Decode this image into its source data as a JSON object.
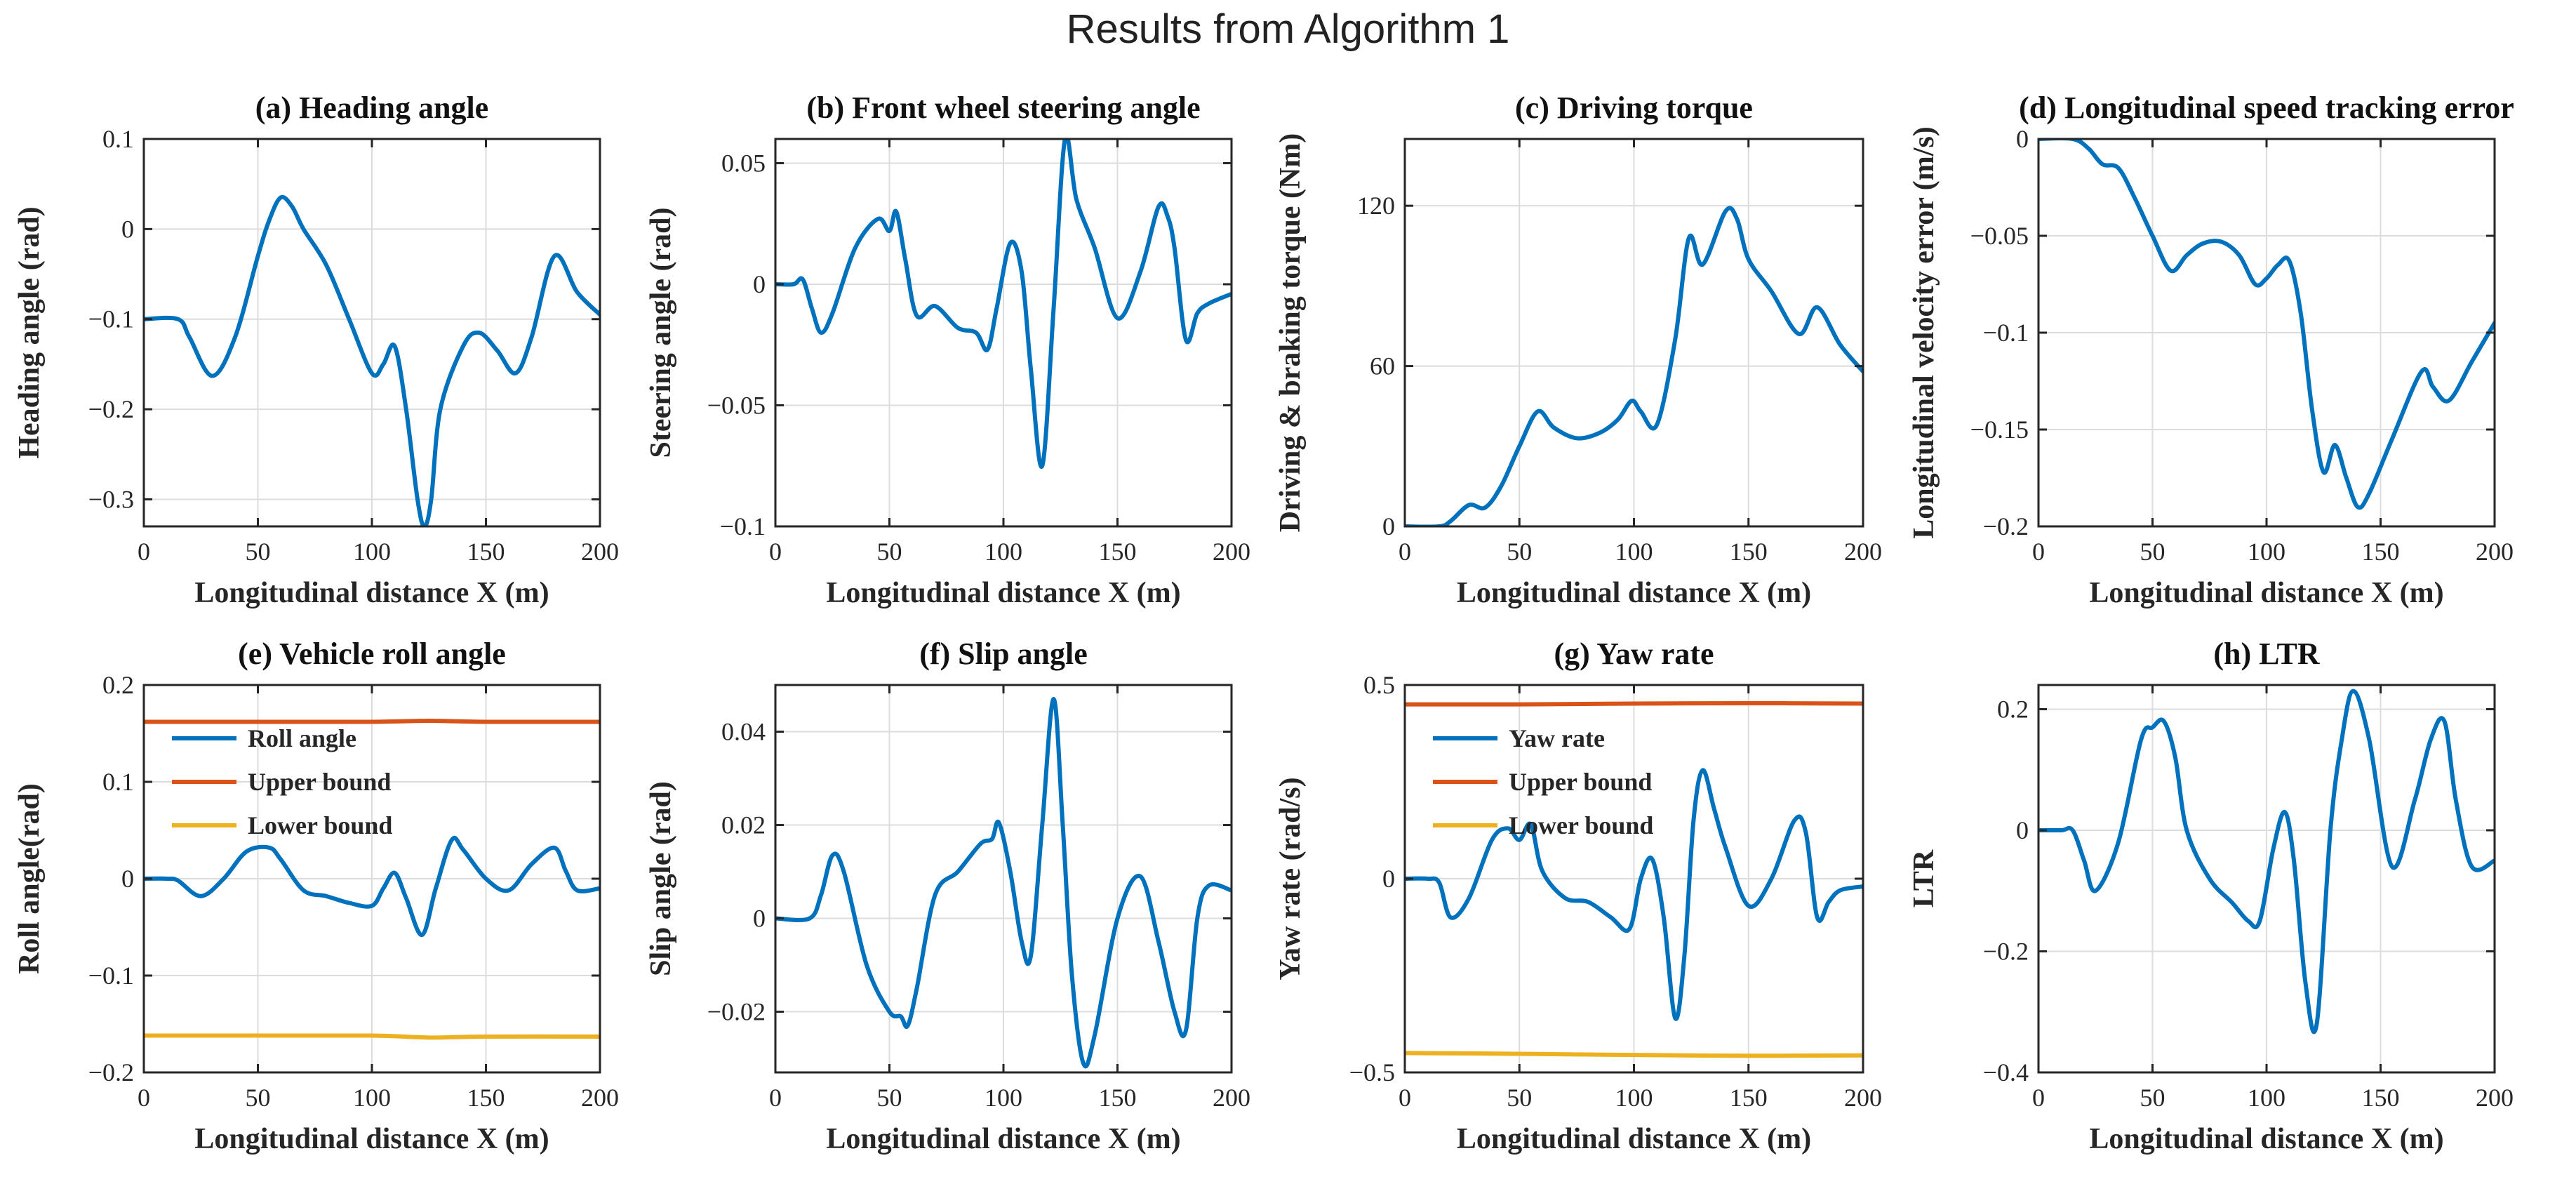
{
  "figure": {
    "title": "Results from Algorithm 1"
  },
  "colors": {
    "blue": "#0072BD",
    "orange": "#D95319",
    "yellow": "#EDB120",
    "grid": "#dcdcdc",
    "axis": "#262626"
  },
  "chart_data": [
    {
      "type": "line",
      "title": "(a) Heading angle",
      "xlabel": "Longitudinal distance X (m)",
      "ylabel": "Heading angle (rad)",
      "xlim": [
        0,
        200
      ],
      "ylim": [
        -0.33,
        0.1
      ],
      "xticks": [
        0,
        50,
        100,
        150,
        200
      ],
      "xticklabels": [
        "0",
        "50",
        "100",
        "150",
        "200"
      ],
      "yticks": [
        -0.3,
        -0.2,
        -0.1,
        0,
        0.1
      ],
      "yticklabels": [
        "−0.3",
        "−0.2",
        "−0.1",
        "0",
        "0.1"
      ],
      "grid": true,
      "legend": null,
      "series": [
        {
          "name": "Heading angle",
          "color": "#0072BD",
          "x": [
            0,
            15,
            20,
            30,
            40,
            50,
            55,
            60,
            65,
            70,
            80,
            90,
            100,
            105,
            110,
            115,
            120,
            123,
            126,
            130,
            140,
            147,
            155,
            163,
            170,
            180,
            190,
            200
          ],
          "y": [
            -0.1,
            -0.1,
            -0.12,
            -0.163,
            -0.12,
            -0.03,
            0.01,
            0.035,
            0.025,
            0.0,
            -0.04,
            -0.1,
            -0.16,
            -0.15,
            -0.13,
            -0.2,
            -0.3,
            -0.33,
            -0.3,
            -0.2,
            -0.13,
            -0.115,
            -0.135,
            -0.16,
            -0.12,
            -0.03,
            -0.07,
            -0.095
          ]
        }
      ]
    },
    {
      "type": "line",
      "title": "(b) Front wheel steering angle",
      "xlabel": "Longitudinal distance X (m)",
      "ylabel": "Steering angle (rad)",
      "xlim": [
        0,
        200
      ],
      "ylim": [
        -0.1,
        0.06
      ],
      "xticks": [
        0,
        50,
        100,
        150,
        200
      ],
      "xticklabels": [
        "0",
        "50",
        "100",
        "150",
        "200"
      ],
      "yticks": [
        -0.1,
        -0.05,
        0,
        0.05
      ],
      "yticklabels": [
        "−0.1",
        "−0.05",
        "0",
        "0.05"
      ],
      "grid": true,
      "legend": null,
      "series": [
        {
          "name": "Steering angle",
          "color": "#0072BD",
          "x": [
            0,
            8,
            12,
            16,
            20,
            25,
            35,
            45,
            50,
            53,
            57,
            62,
            70,
            80,
            88,
            93,
            97,
            103,
            108,
            112,
            117,
            122,
            127,
            132,
            140,
            150,
            160,
            168,
            172,
            175,
            180,
            185,
            190,
            200
          ],
          "y": [
            0,
            0,
            0.002,
            -0.01,
            -0.02,
            -0.012,
            0.015,
            0.027,
            0.022,
            0.03,
            0.01,
            -0.013,
            -0.009,
            -0.018,
            -0.02,
            -0.027,
            -0.01,
            0.017,
            0.005,
            -0.035,
            -0.075,
            -0.01,
            0.06,
            0.035,
            0.015,
            -0.014,
            0.005,
            0.032,
            0.028,
            0.015,
            -0.023,
            -0.012,
            -0.008,
            -0.004
          ]
        }
      ]
    },
    {
      "type": "line",
      "title": "(c) Driving torque",
      "xlabel": "Longitudinal distance X (m)",
      "ylabel": "Driving & braking torque (Nm)",
      "xlim": [
        0,
        200
      ],
      "ylim": [
        0,
        145
      ],
      "xticks": [
        0,
        50,
        100,
        150,
        200
      ],
      "xticklabels": [
        "0",
        "50",
        "100",
        "150",
        "200"
      ],
      "yticks": [
        0,
        60,
        120
      ],
      "yticklabels": [
        "0",
        "60",
        "120"
      ],
      "grid": true,
      "legend": null,
      "series": [
        {
          "name": "Driving torque",
          "color": "#0072BD",
          "x": [
            0,
            15,
            20,
            28,
            35,
            42,
            50,
            58,
            65,
            75,
            85,
            93,
            99,
            103,
            110,
            118,
            124,
            130,
            140,
            145,
            150,
            160,
            172,
            180,
            190,
            200
          ],
          "y": [
            0,
            0,
            2,
            8,
            7,
            15,
            30,
            43,
            37,
            33,
            35,
            40,
            47,
            43,
            38,
            70,
            108,
            98,
            118,
            115,
            100,
            88,
            72,
            82,
            68,
            58
          ]
        }
      ]
    },
    {
      "type": "line",
      "title": "(d) Longitudinal speed tracking error",
      "xlabel": "Longitudinal distance X (m)",
      "ylabel": "Longitudinal velocity error (m/s)",
      "xlim": [
        0,
        200
      ],
      "ylim": [
        -0.2,
        0
      ],
      "xticks": [
        0,
        50,
        100,
        150,
        200
      ],
      "xticklabels": [
        "0",
        "50",
        "100",
        "150",
        "200"
      ],
      "yticks": [
        -0.2,
        -0.15,
        -0.1,
        -0.05,
        0
      ],
      "yticklabels": [
        "−0.2",
        "−0.15",
        "−0.1",
        "−0.05",
        "0"
      ],
      "grid": true,
      "legend": null,
      "series": [
        {
          "name": "Velocity error",
          "color": "#0072BD",
          "x": [
            0,
            15,
            22,
            28,
            35,
            42,
            50,
            58,
            65,
            72,
            80,
            88,
            95,
            100,
            105,
            110,
            115,
            120,
            125,
            130,
            135,
            140,
            145,
            155,
            168,
            173,
            180,
            190,
            200
          ],
          "y": [
            0,
            0,
            -0.005,
            -0.013,
            -0.015,
            -0.03,
            -0.05,
            -0.068,
            -0.06,
            -0.054,
            -0.053,
            -0.06,
            -0.075,
            -0.072,
            -0.065,
            -0.063,
            -0.09,
            -0.14,
            -0.172,
            -0.158,
            -0.175,
            -0.19,
            -0.183,
            -0.155,
            -0.12,
            -0.128,
            -0.135,
            -0.115,
            -0.095
          ]
        }
      ]
    },
    {
      "type": "line",
      "title": "(e) Vehicle roll angle",
      "xlabel": "Longitudinal distance X (m)",
      "ylabel": "Roll angle(rad)",
      "xlim": [
        0,
        200
      ],
      "ylim": [
        -0.2,
        0.2
      ],
      "xticks": [
        0,
        50,
        100,
        150,
        200
      ],
      "xticklabels": [
        "0",
        "50",
        "100",
        "150",
        "200"
      ],
      "yticks": [
        -0.2,
        -0.1,
        0,
        0.1,
        0.2
      ],
      "yticklabels": [
        "−0.2",
        "−0.1",
        "0",
        "0.1",
        "0.2"
      ],
      "grid": true,
      "legend": "top-left",
      "series": [
        {
          "name": "Roll angle",
          "color": "#0072BD",
          "x": [
            0,
            10,
            15,
            25,
            35,
            45,
            55,
            60,
            70,
            80,
            90,
            100,
            105,
            110,
            115,
            122,
            128,
            135,
            140,
            150,
            160,
            170,
            180,
            185,
            190,
            200
          ],
          "y": [
            0,
            0,
            -0.002,
            -0.018,
            0.0,
            0.028,
            0.032,
            0.02,
            -0.012,
            -0.018,
            -0.025,
            -0.028,
            -0.01,
            0.006,
            -0.02,
            -0.058,
            -0.01,
            0.04,
            0.03,
            0.0,
            -0.012,
            0.015,
            0.032,
            0.008,
            -0.012,
            -0.01
          ]
        },
        {
          "name": "Upper bound",
          "color": "#D95319",
          "x": [
            0,
            50,
            100,
            125,
            150,
            200
          ],
          "y": [
            0.162,
            0.162,
            0.162,
            0.163,
            0.162,
            0.162
          ]
        },
        {
          "name": "Lower bound",
          "color": "#EDB120",
          "x": [
            0,
            50,
            100,
            125,
            150,
            200
          ],
          "y": [
            -0.162,
            -0.162,
            -0.162,
            -0.164,
            -0.163,
            -0.163
          ]
        }
      ]
    },
    {
      "type": "line",
      "title": "(f) Slip angle",
      "xlabel": "Longitudinal distance X (m)",
      "ylabel": "Slip angle (rad)",
      "xlim": [
        0,
        200
      ],
      "ylim": [
        -0.033,
        0.05
      ],
      "xticks": [
        0,
        50,
        100,
        150,
        200
      ],
      "xticklabels": [
        "0",
        "50",
        "100",
        "150",
        "200"
      ],
      "yticks": [
        -0.02,
        0,
        0.02,
        0.04
      ],
      "yticklabels": [
        "−0.02",
        "0",
        "0.02",
        "0.04"
      ],
      "grid": true,
      "legend": null,
      "series": [
        {
          "name": "Slip angle",
          "color": "#0072BD",
          "x": [
            0,
            15,
            20,
            25,
            30,
            40,
            50,
            55,
            58,
            62,
            70,
            80,
            90,
            95,
            98,
            103,
            108,
            112,
            117,
            122,
            126,
            130,
            135,
            140,
            150,
            160,
            168,
            175,
            180,
            185,
            190,
            200
          ],
          "y": [
            0,
            0,
            0.005,
            0.0135,
            0.01,
            -0.01,
            -0.02,
            -0.021,
            -0.023,
            -0.015,
            0.005,
            0.01,
            0.016,
            0.017,
            0.0205,
            0.01,
            -0.005,
            -0.008,
            0.02,
            0.047,
            0.02,
            -0.012,
            -0.031,
            -0.025,
            0.0,
            0.009,
            -0.005,
            -0.02,
            -0.024,
            0.0,
            0.007,
            0.006
          ]
        }
      ]
    },
    {
      "type": "line",
      "title": "(g) Yaw rate",
      "xlabel": "Longitudinal distance X (m)",
      "ylabel": "Yaw rate (rad/s)",
      "xlim": [
        0,
        200
      ],
      "ylim": [
        -0.5,
        0.5
      ],
      "xticks": [
        0,
        50,
        100,
        150,
        200
      ],
      "xticklabels": [
        "0",
        "50",
        "100",
        "150",
        "200"
      ],
      "yticks": [
        -0.5,
        0,
        0.5
      ],
      "yticklabels": [
        "−0.5",
        "0",
        "0.5"
      ],
      "grid": true,
      "legend": "top-left",
      "series": [
        {
          "name": "Yaw rate",
          "color": "#0072BD",
          "x": [
            0,
            10,
            15,
            20,
            28,
            38,
            45,
            50,
            55,
            60,
            70,
            80,
            90,
            98,
            103,
            108,
            113,
            118,
            122,
            126,
            130,
            135,
            140,
            150,
            160,
            170,
            175,
            180,
            185,
            190,
            200
          ],
          "y": [
            0,
            0,
            -0.01,
            -0.1,
            -0.05,
            0.1,
            0.13,
            0.1,
            0.14,
            0.02,
            -0.05,
            -0.06,
            -0.1,
            -0.13,
            0.0,
            0.05,
            -0.1,
            -0.36,
            -0.2,
            0.15,
            0.28,
            0.18,
            0.08,
            -0.07,
            0.0,
            0.15,
            0.12,
            -0.1,
            -0.06,
            -0.03,
            -0.02
          ]
        },
        {
          "name": "Upper bound",
          "color": "#D95319",
          "x": [
            0,
            50,
            100,
            150,
            200
          ],
          "y": [
            0.45,
            0.45,
            0.452,
            0.453,
            0.452
          ]
        },
        {
          "name": "Lower bound",
          "color": "#EDB120",
          "x": [
            0,
            50,
            100,
            150,
            200
          ],
          "y": [
            -0.45,
            -0.452,
            -0.455,
            -0.457,
            -0.456
          ]
        }
      ]
    },
    {
      "type": "line",
      "title": "(h) LTR",
      "xlabel": "Longitudinal distance X (m)",
      "ylabel": "LTR",
      "xlim": [
        0,
        200
      ],
      "ylim": [
        -0.4,
        0.24
      ],
      "xticks": [
        0,
        50,
        100,
        150,
        200
      ],
      "xticklabels": [
        "0",
        "50",
        "100",
        "150",
        "200"
      ],
      "yticks": [
        -0.4,
        -0.2,
        0,
        0.2
      ],
      "yticklabels": [
        "−0.4",
        "−0.2",
        "0",
        "0.2"
      ],
      "grid": true,
      "legend": null,
      "series": [
        {
          "name": "LTR",
          "color": "#0072BD",
          "x": [
            0,
            10,
            15,
            20,
            25,
            35,
            45,
            50,
            55,
            60,
            65,
            75,
            85,
            92,
            97,
            103,
            108,
            112,
            117,
            122,
            128,
            133,
            138,
            145,
            155,
            165,
            172,
            178,
            183,
            190,
            200
          ],
          "y": [
            0,
            0,
            0.0,
            -0.05,
            -0.1,
            -0.02,
            0.15,
            0.17,
            0.18,
            0.12,
            0.0,
            -0.08,
            -0.12,
            -0.15,
            -0.15,
            -0.03,
            0.03,
            -0.05,
            -0.25,
            -0.32,
            0.0,
            0.15,
            0.23,
            0.15,
            -0.06,
            0.05,
            0.15,
            0.18,
            0.05,
            -0.06,
            -0.05
          ]
        }
      ]
    }
  ]
}
